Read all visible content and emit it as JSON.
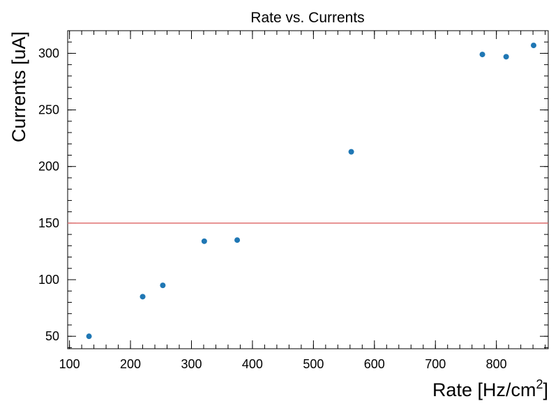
{
  "chart_data": {
    "type": "scatter",
    "title": "Rate vs. Currents",
    "xlabel": "Rate [Hz/cm",
    "xlabel_sup": "2",
    "xlabel_close": "]",
    "ylabel": "Currents [uA]",
    "xlim": [
      97,
      885
    ],
    "ylim": [
      39,
      320
    ],
    "x_ticks": [
      100,
      200,
      300,
      400,
      500,
      600,
      700,
      800
    ],
    "y_ticks": [
      50,
      100,
      150,
      200,
      250,
      300
    ],
    "x_minor_step": 20,
    "y_minor_step": 10,
    "grid": false,
    "series": [
      {
        "color": "#1f77b4",
        "points": [
          {
            "x": 132,
            "y": 50
          },
          {
            "x": 220,
            "y": 85
          },
          {
            "x": 253,
            "y": 95
          },
          {
            "x": 321,
            "y": 134
          },
          {
            "x": 375,
            "y": 135
          },
          {
            "x": 562,
            "y": 213
          },
          {
            "x": 777,
            "y": 299
          },
          {
            "x": 816,
            "y": 297
          },
          {
            "x": 861,
            "y": 307
          }
        ]
      }
    ],
    "reference_line": {
      "y": 150,
      "color": "#e07070"
    }
  }
}
